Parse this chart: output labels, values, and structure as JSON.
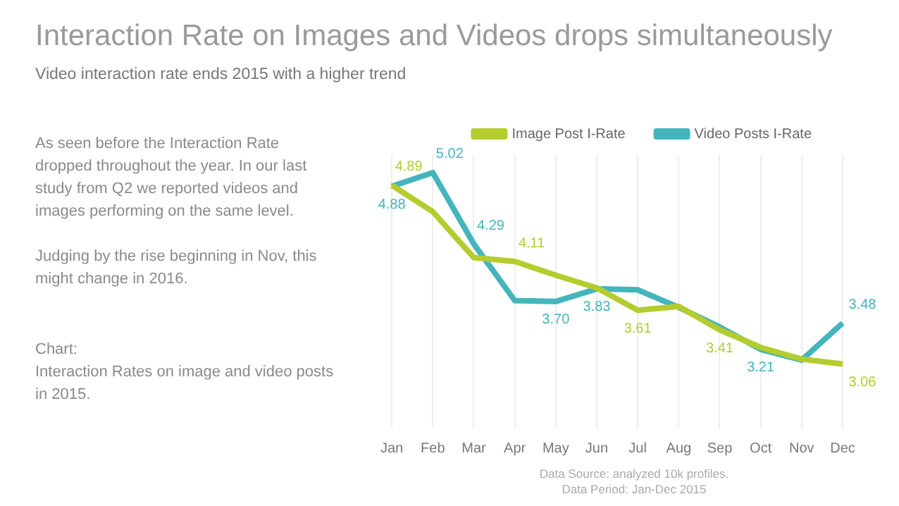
{
  "chart_data": {
    "type": "line",
    "title": "Interaction Rate on Images and Videos drops simultaneously",
    "subtitle": "Video interaction rate ends 2015 with a higher trend",
    "categories": [
      "Jan",
      "Feb",
      "Mar",
      "Apr",
      "May",
      "Jun",
      "Jul",
      "Aug",
      "Sep",
      "Oct",
      "Nov",
      "Dec"
    ],
    "series": [
      {
        "name": "Image Post I-Rate",
        "color": "#b5cc2e",
        "values": [
          4.89,
          4.62,
          4.15,
          4.11,
          3.97,
          3.84,
          3.61,
          3.65,
          3.41,
          3.23,
          3.11,
          3.06
        ],
        "value_labels": [
          "4.89",
          null,
          null,
          "4.11",
          null,
          null,
          "3.61",
          null,
          "3.41",
          null,
          null,
          "3.06"
        ]
      },
      {
        "name": "Video Posts I-Rate",
        "color": "#45b5bc",
        "values": [
          4.88,
          5.02,
          4.29,
          3.71,
          3.7,
          3.83,
          3.82,
          3.64,
          3.44,
          3.21,
          3.1,
          3.48
        ],
        "value_labels": [
          "4.88",
          "5.02",
          "4.29",
          null,
          "3.70",
          "3.83",
          null,
          null,
          null,
          "3.21",
          null,
          "3.48"
        ]
      }
    ],
    "ylim": [
      2.4,
      5.2
    ],
    "tick_labels": "x",
    "grid": "x",
    "legend": "top right",
    "marker": "none",
    "line_style": "solid",
    "annotations": [
      "As seen before the Interaction Rate dropped throughout the year. In our last study from Q2 we reported videos and images performing on the same level.",
      "Judging by the rise beginning in Nov, this might change in 2016.",
      "Chart:\nInteraction Rates on image and video posts in 2015.",
      "Data Source: analyzed 10k profiles.",
      "Data Period: Jan-Dec 2015"
    ]
  }
}
